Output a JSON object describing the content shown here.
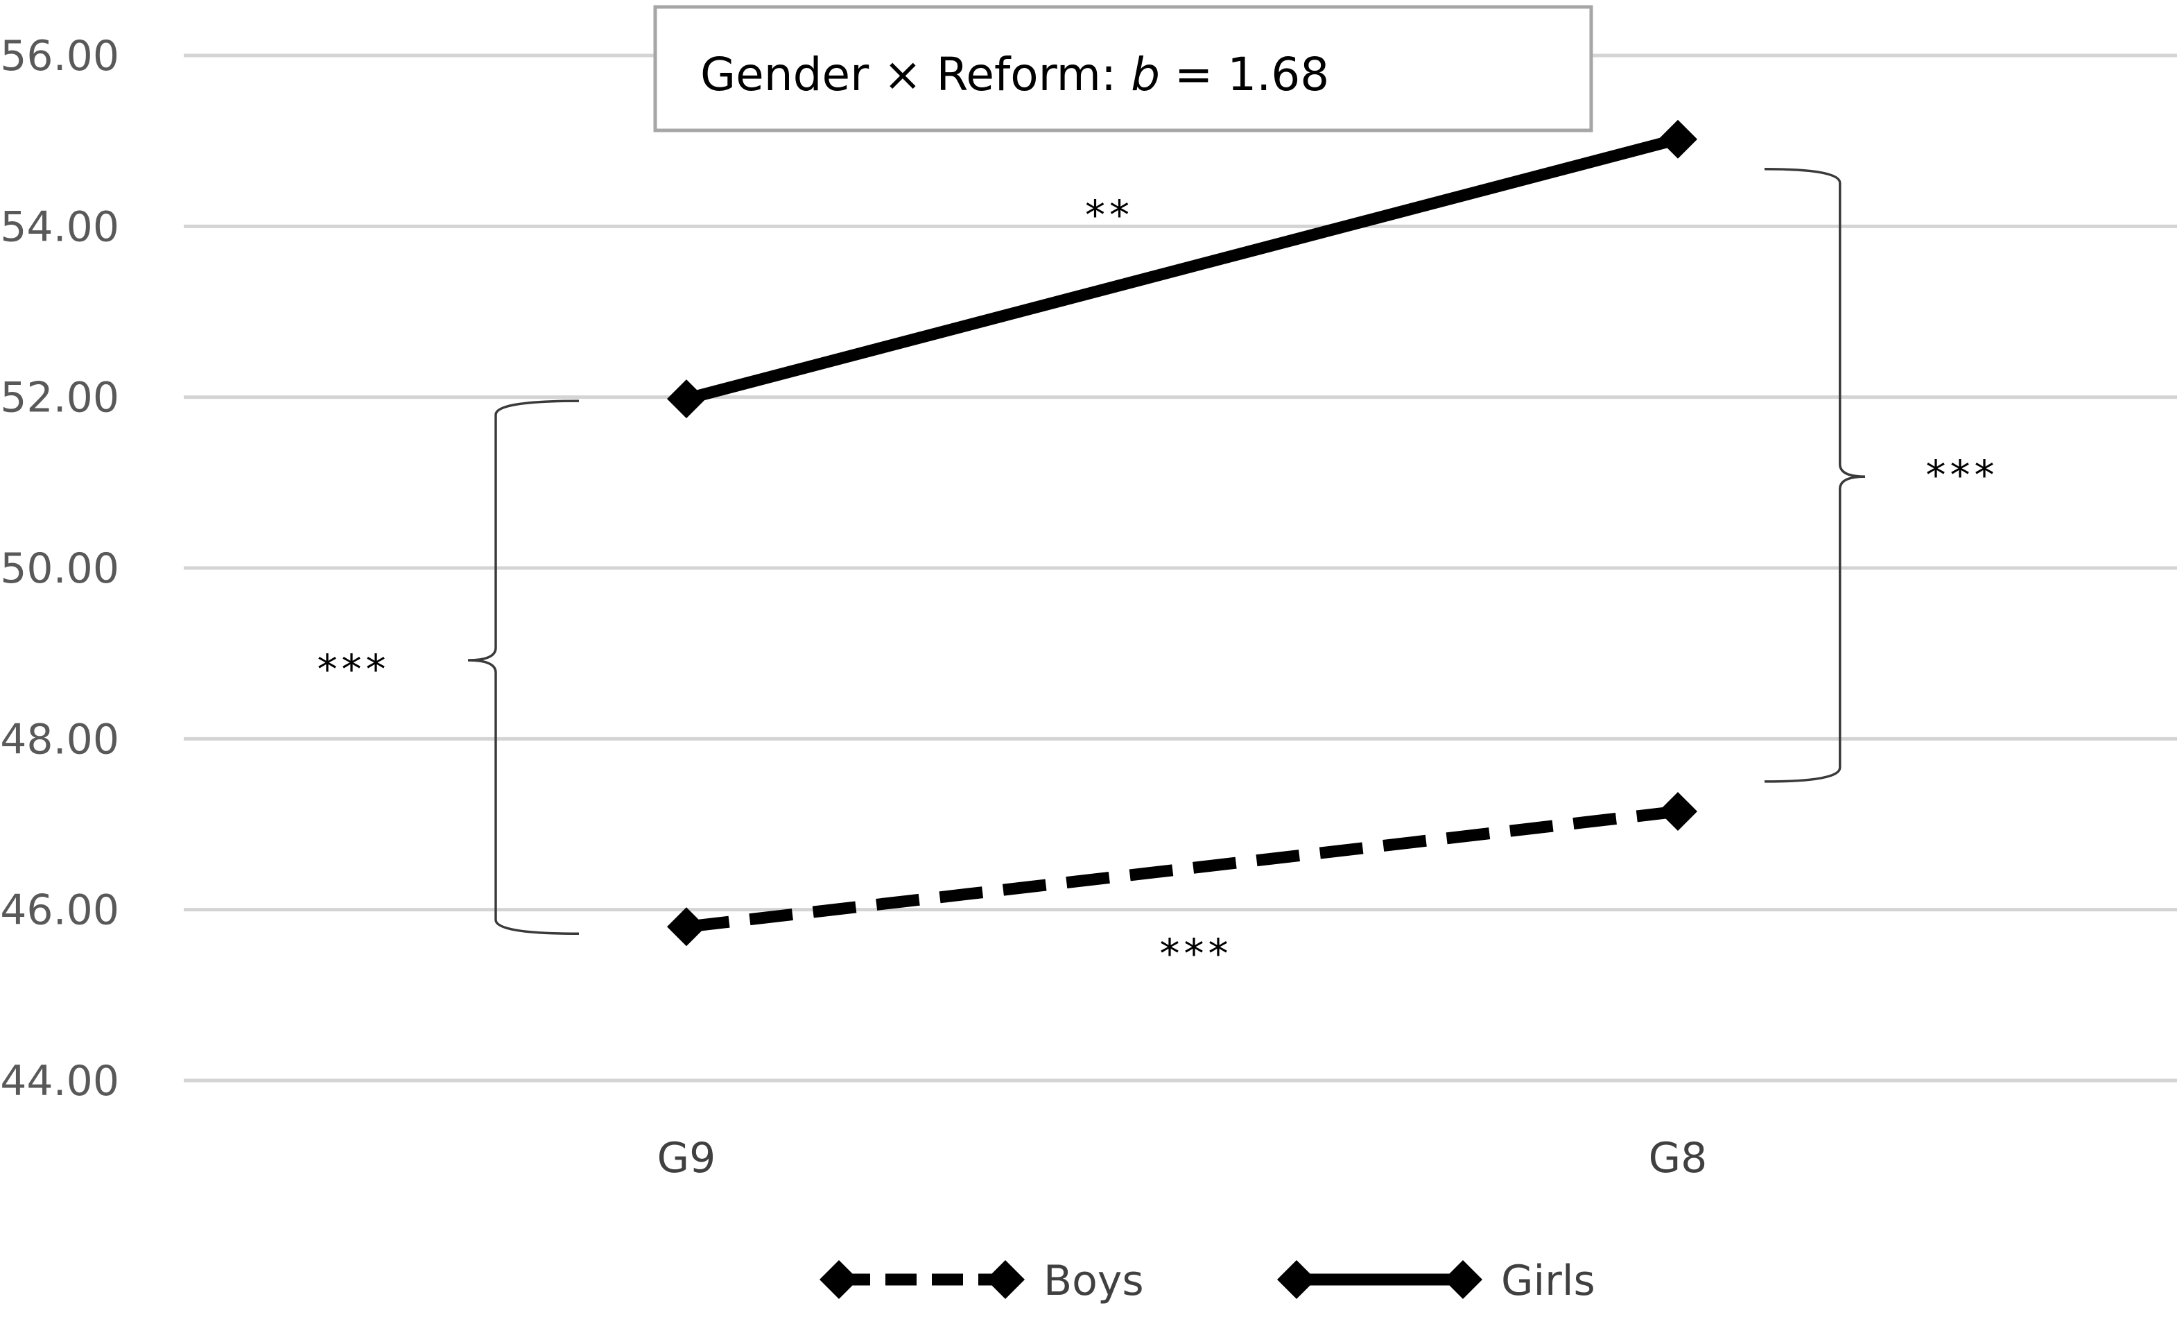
{
  "chart_data": {
    "type": "line",
    "categories": [
      "G9",
      "G8"
    ],
    "series": [
      {
        "name": "Boys",
        "values": [
          45.8,
          47.15
        ],
        "line_style": "dashed",
        "color": "#000000"
      },
      {
        "name": "Girls",
        "values": [
          51.98,
          55.02
        ],
        "line_style": "solid",
        "color": "#000000"
      }
    ],
    "ylim": [
      44,
      56
    ],
    "yticks": [
      "44.00",
      "46.00",
      "48.00",
      "50.00",
      "52.00",
      "54.00",
      "56.00"
    ],
    "grid": true,
    "legend_position": "bottom",
    "annotation": {
      "prefix": "Gender × Reform: ",
      "coef_symbol": "b",
      "suffix": " = 1.68"
    },
    "significance": {
      "girls_change": "**",
      "boys_change": "***",
      "gap_g9": "***",
      "gap_g8": "***"
    }
  }
}
